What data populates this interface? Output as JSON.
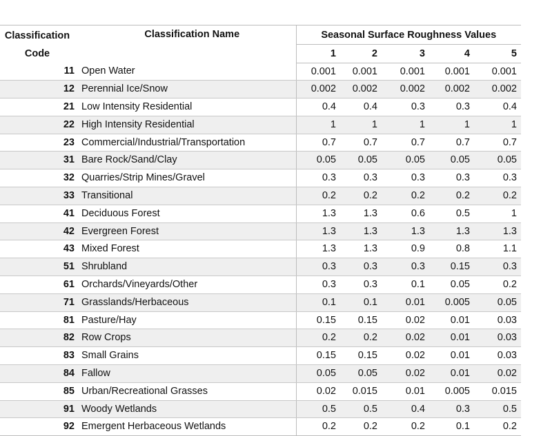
{
  "header": {
    "code_label_line1": "Classification",
    "code_label_line2": "Code",
    "name_label": "Classification Name",
    "seasonal_label": "Seasonal Surface Roughness Values",
    "seasons": [
      "1",
      "2",
      "3",
      "4",
      "5"
    ]
  },
  "rows": [
    {
      "code": "11",
      "name": "Open Water",
      "v": [
        "0.001",
        "0.001",
        "0.001",
        "0.001",
        "0.001"
      ]
    },
    {
      "code": "12",
      "name": "Perennial Ice/Snow",
      "v": [
        "0.002",
        "0.002",
        "0.002",
        "0.002",
        "0.002"
      ]
    },
    {
      "code": "21",
      "name": "Low Intensity Residential",
      "v": [
        "0.4",
        "0.4",
        "0.3",
        "0.3",
        "0.4"
      ]
    },
    {
      "code": "22",
      "name": "High Intensity Residential",
      "v": [
        "1",
        "1",
        "1",
        "1",
        "1"
      ]
    },
    {
      "code": "23",
      "name": "Commercial/Industrial/Transportation",
      "v": [
        "0.7",
        "0.7",
        "0.7",
        "0.7",
        "0.7"
      ]
    },
    {
      "code": "31",
      "name": "Bare Rock/Sand/Clay",
      "v": [
        "0.05",
        "0.05",
        "0.05",
        "0.05",
        "0.05"
      ]
    },
    {
      "code": "32",
      "name": "Quarries/Strip Mines/Gravel",
      "v": [
        "0.3",
        "0.3",
        "0.3",
        "0.3",
        "0.3"
      ]
    },
    {
      "code": "33",
      "name": "Transitional",
      "v": [
        "0.2",
        "0.2",
        "0.2",
        "0.2",
        "0.2"
      ]
    },
    {
      "code": "41",
      "name": "Deciduous Forest",
      "v": [
        "1.3",
        "1.3",
        "0.6",
        "0.5",
        "1"
      ]
    },
    {
      "code": "42",
      "name": "Evergreen Forest",
      "v": [
        "1.3",
        "1.3",
        "1.3",
        "1.3",
        "1.3"
      ]
    },
    {
      "code": "43",
      "name": "Mixed Forest",
      "v": [
        "1.3",
        "1.3",
        "0.9",
        "0.8",
        "1.1"
      ]
    },
    {
      "code": "51",
      "name": "Shrubland",
      "v": [
        "0.3",
        "0.3",
        "0.3",
        "0.15",
        "0.3"
      ]
    },
    {
      "code": "61",
      "name": "Orchards/Vineyards/Other",
      "v": [
        "0.3",
        "0.3",
        "0.1",
        "0.05",
        "0.2"
      ]
    },
    {
      "code": "71",
      "name": "Grasslands/Herbaceous",
      "v": [
        "0.1",
        "0.1",
        "0.01",
        "0.005",
        "0.05"
      ]
    },
    {
      "code": "81",
      "name": "Pasture/Hay",
      "v": [
        "0.15",
        "0.15",
        "0.02",
        "0.01",
        "0.03"
      ]
    },
    {
      "code": "82",
      "name": "Row Crops",
      "v": [
        "0.2",
        "0.2",
        "0.02",
        "0.01",
        "0.03"
      ]
    },
    {
      "code": "83",
      "name": "Small Grains",
      "v": [
        "0.15",
        "0.15",
        "0.02",
        "0.01",
        "0.03"
      ]
    },
    {
      "code": "84",
      "name": "Fallow",
      "v": [
        "0.05",
        "0.05",
        "0.02",
        "0.01",
        "0.02"
      ]
    },
    {
      "code": "85",
      "name": "Urban/Recreational Grasses",
      "v": [
        "0.02",
        "0.015",
        "0.01",
        "0.005",
        "0.015"
      ]
    },
    {
      "code": "91",
      "name": "Woody Wetlands",
      "v": [
        "0.5",
        "0.5",
        "0.4",
        "0.3",
        "0.5"
      ]
    },
    {
      "code": "92",
      "name": "Emergent Herbaceous Wetlands",
      "v": [
        "0.2",
        "0.2",
        "0.2",
        "0.1",
        "0.2"
      ]
    }
  ]
}
